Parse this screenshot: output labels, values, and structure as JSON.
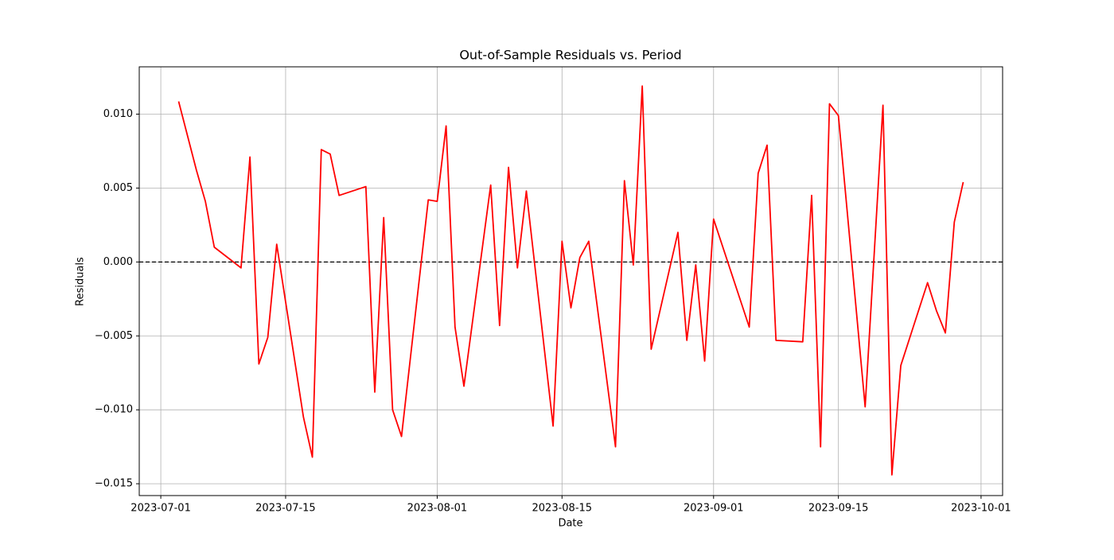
{
  "chart_data": {
    "type": "line",
    "title": "Out-of-Sample Residuals vs. Period",
    "x_label": "Date",
    "y_label": "Residuals",
    "x": [
      "2023-07-03",
      "2023-07-05",
      "2023-07-06",
      "2023-07-07",
      "2023-07-10",
      "2023-07-11",
      "2023-07-12",
      "2023-07-13",
      "2023-07-14",
      "2023-07-17",
      "2023-07-18",
      "2023-07-19",
      "2023-07-20",
      "2023-07-21",
      "2023-07-24",
      "2023-07-25",
      "2023-07-26",
      "2023-07-27",
      "2023-07-28",
      "2023-07-31",
      "2023-08-01",
      "2023-08-02",
      "2023-08-03",
      "2023-08-04",
      "2023-08-07",
      "2023-08-08",
      "2023-08-09",
      "2023-08-10",
      "2023-08-11",
      "2023-08-14",
      "2023-08-15",
      "2023-08-16",
      "2023-08-17",
      "2023-08-18",
      "2023-08-21",
      "2023-08-22",
      "2023-08-23",
      "2023-08-24",
      "2023-08-25",
      "2023-08-28",
      "2023-08-29",
      "2023-08-30",
      "2023-08-31",
      "2023-09-01",
      "2023-09-05",
      "2023-09-06",
      "2023-09-07",
      "2023-09-08",
      "2023-09-11",
      "2023-09-12",
      "2023-09-13",
      "2023-09-14",
      "2023-09-15",
      "2023-09-18",
      "2023-09-20",
      "2023-09-21",
      "2023-09-22",
      "2023-09-25",
      "2023-09-26",
      "2023-09-27",
      "2023-09-28",
      "2023-09-29"
    ],
    "series": [
      {
        "name": "Residuals",
        "color": "#ff0000",
        "values": [
          0.01086,
          0.0062,
          0.0041,
          0.001,
          -0.0004,
          0.0071,
          -0.0069,
          -0.0051,
          0.0012,
          -0.0105,
          -0.0132,
          0.0076,
          0.0073,
          0.0045,
          0.0051,
          -0.0088,
          0.003,
          -0.01,
          -0.0118,
          0.0042,
          0.0041,
          0.0092,
          -0.0044,
          -0.0084,
          0.0052,
          -0.0043,
          0.0064,
          -0.0004,
          0.0048,
          -0.0111,
          0.0014,
          -0.0031,
          0.0003,
          0.0014,
          -0.0125,
          0.0055,
          -0.0002,
          0.0119,
          -0.0059,
          0.002,
          -0.0053,
          -0.0002,
          -0.0067,
          0.0029,
          -0.0044,
          0.006,
          0.0079,
          -0.0053,
          -0.0054,
          0.0045,
          -0.0125,
          0.0107,
          0.0099,
          -0.0098,
          0.0106,
          -0.0144,
          -0.007,
          -0.0014,
          -0.0033,
          -0.0048,
          0.0027,
          0.0054
        ]
      }
    ],
    "xlim": [
      "2023-06-28T14:00",
      "2023-10-03T10:00"
    ],
    "xticks": [
      "2023-07-01",
      "2023-07-15",
      "2023-08-01",
      "2023-08-15",
      "2023-09-01",
      "2023-09-15",
      "2023-10-01"
    ],
    "ylim": [
      -0.0158,
      0.0132
    ],
    "yticks": [
      {
        "value": -0.015,
        "label": "−0.015"
      },
      {
        "value": -0.01,
        "label": "−0.010"
      },
      {
        "value": -0.005,
        "label": "−0.005"
      },
      {
        "value": 0,
        "label": "0.000"
      },
      {
        "value": 0.005,
        "label": "0.005"
      },
      {
        "value": 0.01,
        "label": "0.010"
      }
    ],
    "reference_line": 0,
    "reference_color": "#000000",
    "grid": true
  }
}
